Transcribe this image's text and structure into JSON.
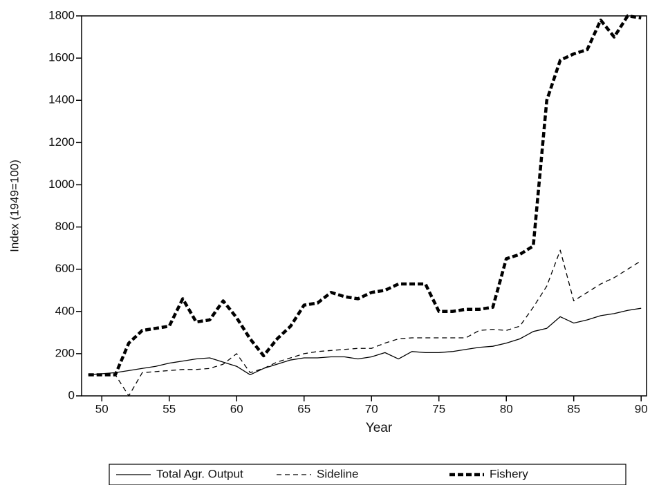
{
  "chart_data": {
    "type": "line",
    "x_label": "Year",
    "y_label": "Index (1949=100)",
    "x": [
      49,
      50,
      51,
      52,
      53,
      54,
      55,
      56,
      57,
      58,
      59,
      60,
      61,
      62,
      63,
      64,
      65,
      66,
      67,
      68,
      69,
      70,
      71,
      72,
      73,
      74,
      75,
      76,
      77,
      78,
      79,
      80,
      81,
      82,
      83,
      84,
      85,
      86,
      87,
      88,
      89,
      90
    ],
    "series": [
      {
        "name": "Total Agr. Output",
        "color": "#000000",
        "values": [
          100,
          105,
          110,
          120,
          130,
          140,
          155,
          165,
          175,
          180,
          160,
          140,
          100,
          130,
          150,
          170,
          180,
          180,
          185,
          185,
          175,
          185,
          205,
          175,
          210,
          205,
          205,
          210,
          220,
          230,
          235,
          250,
          270,
          305,
          320,
          375,
          345,
          360,
          380,
          390,
          405,
          415
        ]
      },
      {
        "name": "Sideline",
        "color": "#000000",
        "values": [
          100,
          100,
          100,
          0,
          110,
          115,
          120,
          125,
          125,
          130,
          150,
          200,
          110,
          130,
          160,
          180,
          200,
          210,
          215,
          220,
          225,
          225,
          250,
          270,
          275,
          275,
          275,
          275,
          275,
          310,
          315,
          310,
          330,
          420,
          520,
          690,
          450,
          490,
          530,
          560,
          600,
          640
        ]
      },
      {
        "name": "Fishery",
        "color": "#000000",
        "values": [
          100,
          100,
          100,
          250,
          310,
          320,
          330,
          460,
          350,
          360,
          450,
          370,
          270,
          190,
          270,
          330,
          430,
          440,
          490,
          470,
          460,
          490,
          500,
          530,
          530,
          530,
          400,
          400,
          410,
          410,
          420,
          650,
          670,
          710,
          1400,
          1590,
          1620,
          1640,
          1780,
          1700,
          1800,
          1790
        ]
      }
    ],
    "xlim": [
      48.5,
      90.4
    ],
    "xticks": [
      50,
      55,
      60,
      65,
      70,
      75,
      80,
      85,
      90
    ],
    "ylim": [
      0,
      1800
    ],
    "yticks": [
      0,
      200,
      400,
      600,
      800,
      1000,
      1200,
      1400,
      1600,
      1800
    ],
    "grid": false,
    "legend": "bottom"
  }
}
